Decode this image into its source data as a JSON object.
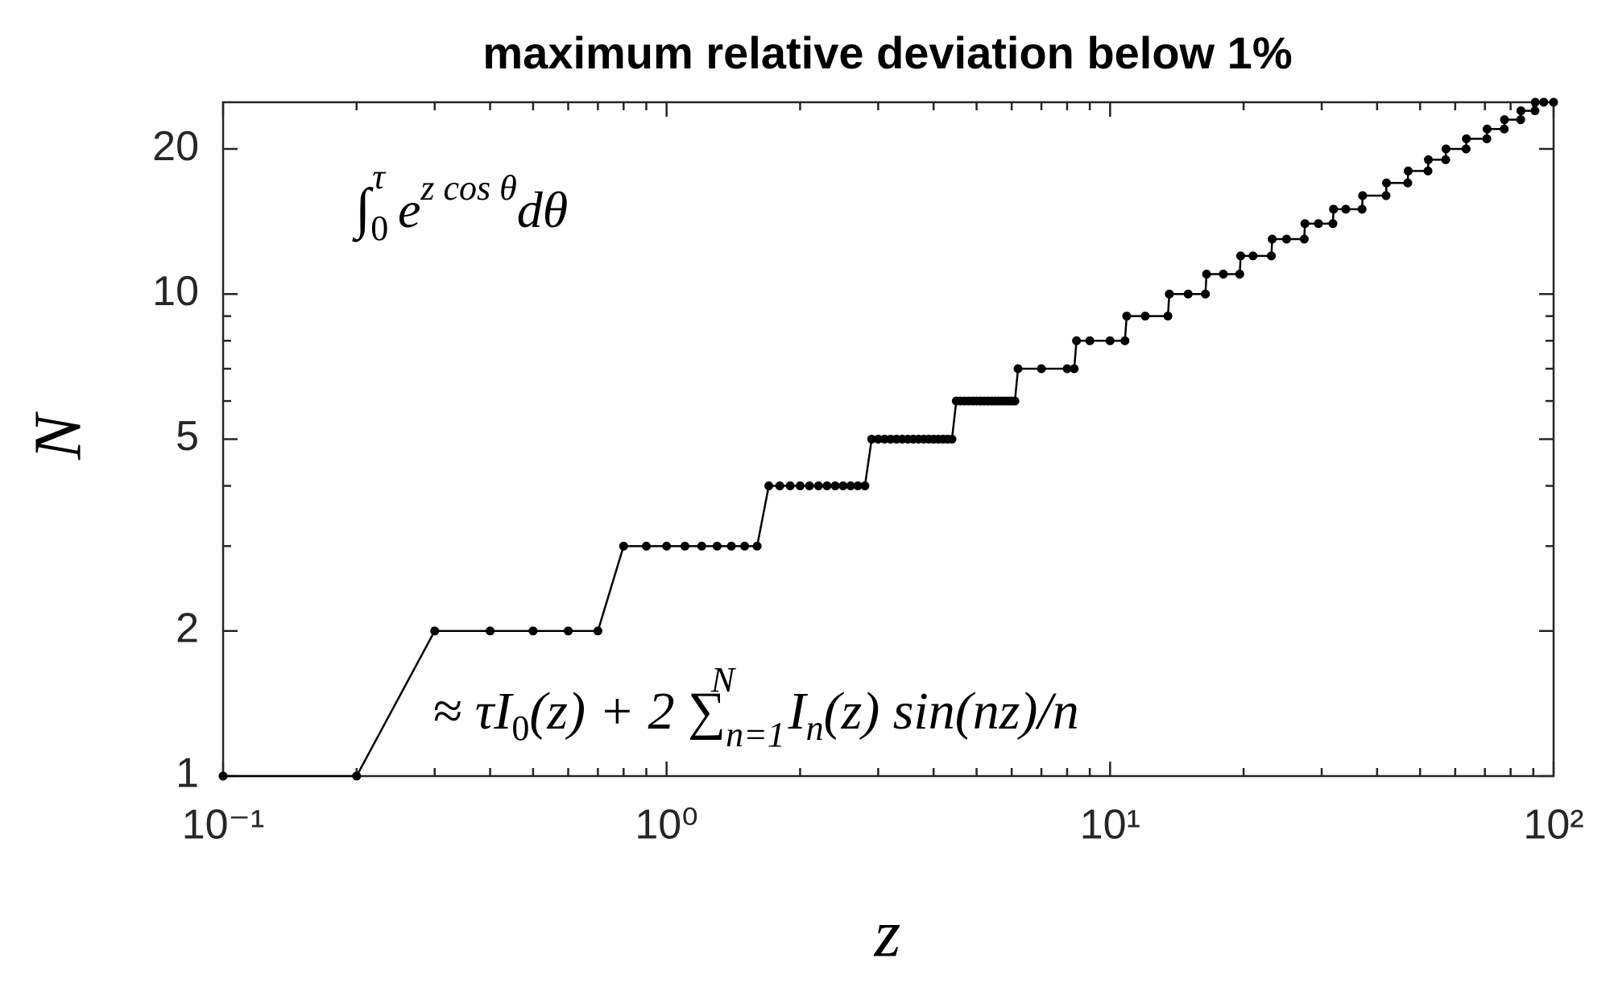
{
  "chart_data": {
    "type": "line",
    "title": "maximum relative deviation below 1%",
    "xlabel": "z",
    "ylabel": "N",
    "annotations": [
      {
        "parts": [
          "∫",
          "0",
          "τ",
          " e",
          "z cos θ",
          "dθ"
        ]
      },
      {
        "parts": [
          "≈ τI",
          "0",
          "(z) + 2 ∑",
          "n=1",
          "N",
          " I",
          "n",
          "(z) sin(nz)/n"
        ]
      }
    ],
    "xscale": "log",
    "yscale": "log",
    "xlim": [
      0.1,
      100
    ],
    "ylim": [
      1,
      25
    ],
    "xticks": [
      {
        "value": 0.1,
        "label": "10⁻¹"
      },
      {
        "value": 1,
        "label": "10⁰"
      },
      {
        "value": 10,
        "label": "10¹"
      },
      {
        "value": 100,
        "label": "10²"
      }
    ],
    "xminorticks": [
      0.2,
      0.3,
      0.4,
      0.5,
      0.6,
      0.7,
      0.8,
      0.9,
      2,
      3,
      4,
      5,
      6,
      7,
      8,
      9,
      20,
      30,
      40,
      50,
      60,
      70,
      80,
      90
    ],
    "yticks": [
      1,
      2,
      5,
      10,
      20
    ],
    "yminorticks": [
      3,
      4,
      6,
      7,
      8,
      9
    ],
    "grid": false,
    "x": [
      0.1,
      0.2,
      0.3,
      0.4,
      0.5,
      0.6,
      0.7,
      0.8,
      0.9,
      1,
      1.1,
      1.2,
      1.3,
      1.4,
      1.5,
      1.6,
      1.7,
      1.8,
      1.9,
      2,
      2.1,
      2.2,
      2.3,
      2.4,
      2.5,
      2.6,
      2.7,
      2.8,
      2.9,
      3,
      3.1,
      3.2,
      3.3,
      3.4,
      3.5,
      3.6,
      3.7,
      3.8,
      3.9,
      4,
      4.1,
      4.2,
      4.3,
      4.4,
      4.5,
      4.6,
      4.7,
      4.8,
      4.9,
      5,
      5.1,
      5.2,
      5.3,
      5.4,
      5.5,
      5.6,
      5.7,
      5.8,
      5.9,
      6,
      6.1,
      6.2,
      7,
      8,
      8.3,
      8.4,
      9,
      10,
      10.8,
      10.9,
      12,
      13.5,
      13.6,
      15,
      16.4,
      16.5,
      18,
      19.6,
      19.7,
      21,
      23.1,
      23.2,
      25,
      27.4,
      27.5,
      29.5,
      31.8,
      31.9,
      34,
      37,
      37.1,
      41.9,
      42,
      46.9,
      47,
      52.1,
      52.2,
      57.1,
      57.2,
      63.5,
      63.6,
      70.7,
      70.8,
      77.4,
      77.5,
      84.3,
      84.4,
      90.8,
      90.9,
      95,
      100
    ],
    "series": [
      {
        "color": "#000000",
        "values": [
          1,
          1,
          2,
          2,
          2,
          2,
          2,
          3,
          3,
          3,
          3,
          3,
          3,
          3,
          3,
          3,
          4,
          4,
          4,
          4,
          4,
          4,
          4,
          4,
          4,
          4,
          4,
          4,
          5,
          5,
          5,
          5,
          5,
          5,
          5,
          5,
          5,
          5,
          5,
          5,
          5,
          5,
          5,
          5,
          6,
          6,
          6,
          6,
          6,
          6,
          6,
          6,
          6,
          6,
          6,
          6,
          6,
          6,
          6,
          6,
          6,
          7,
          7,
          7,
          7,
          8,
          8,
          8,
          8,
          9,
          9,
          9,
          10,
          10,
          10,
          11,
          11,
          11,
          12,
          12,
          12,
          13,
          13,
          13,
          14,
          14,
          14,
          15,
          15,
          15,
          16,
          16,
          17,
          17,
          18,
          18,
          19,
          19,
          20,
          20,
          21,
          21,
          22,
          22,
          23,
          23,
          24,
          24,
          25,
          25,
          25
        ]
      }
    ]
  }
}
